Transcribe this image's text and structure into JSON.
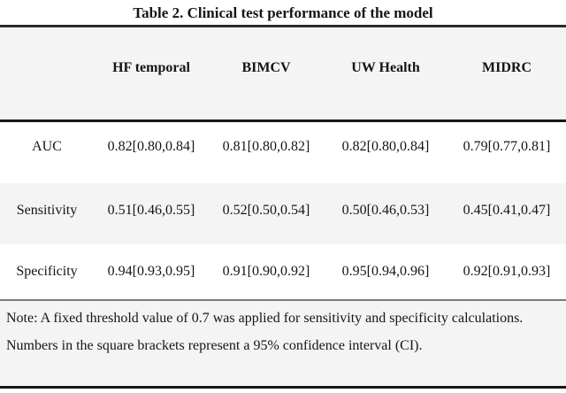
{
  "title": "Table 2. Clinical test performance of the model",
  "table": {
    "columns": [
      "HF temporal",
      "BIMCV",
      "UW Health",
      "MIDRC"
    ],
    "rows": [
      {
        "label": "AUC",
        "values": [
          "0.82[0.80,0.84]",
          "0.81[0.80,0.82]",
          "0.82[0.80,0.84]",
          "0.79[0.77,0.81]"
        ]
      },
      {
        "label": "Sensitivity",
        "values": [
          "0.51[0.46,0.55]",
          "0.52[0.50,0.54]",
          "0.50[0.46,0.53]",
          "0.45[0.41,0.47]"
        ]
      },
      {
        "label": "Specificity",
        "values": [
          "0.94[0.93,0.95]",
          "0.91[0.90,0.92]",
          "0.95[0.94,0.96]",
          "0.92[0.91,0.93]"
        ]
      }
    ]
  },
  "note": "Note: A fixed threshold value of 0.7 was applied for sensitivity and specificity calculations. Numbers in the square brackets represent a 95% confidence interval (CI).",
  "colors": {
    "stripe": "#f4f4f4",
    "rule_dark": "#161616",
    "rule_gray": "#7b7b7b",
    "text": "#151515",
    "background": "#ffffff"
  }
}
